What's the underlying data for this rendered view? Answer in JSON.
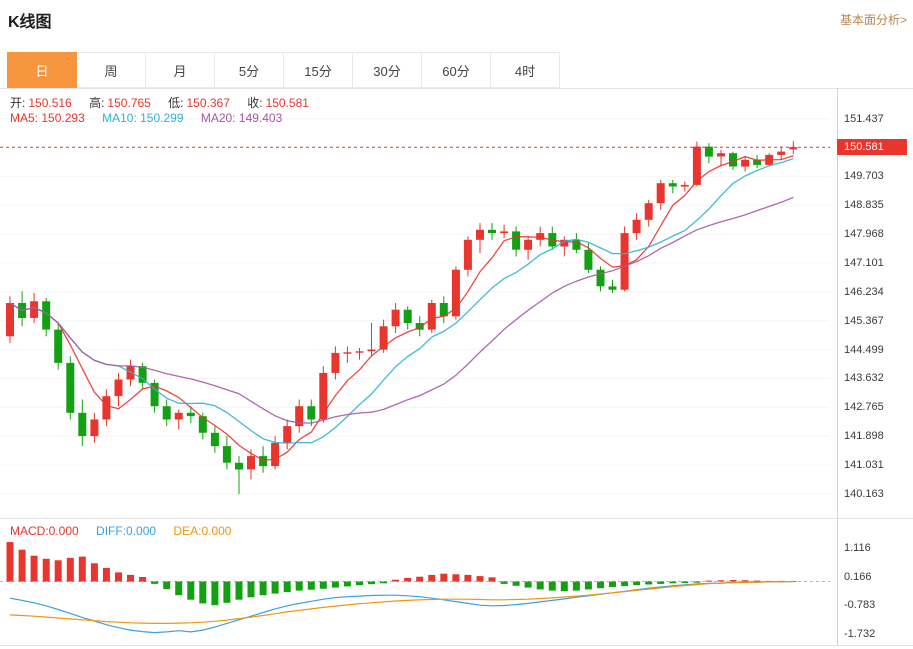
{
  "header": {
    "title": "K线图",
    "analysis_link": "基本面分析>"
  },
  "tabs": {
    "items": [
      "日",
      "周",
      "月",
      "5分",
      "15分",
      "30分",
      "60分",
      "4时"
    ],
    "active_index": 0
  },
  "ohlc": {
    "open_label": "开:",
    "open": "150.516",
    "high_label": "高:",
    "high": "150.765",
    "low_label": "低:",
    "low": "150.367",
    "close_label": "收:",
    "close": "150.581"
  },
  "ma": {
    "ma5_label": "MA5:",
    "ma5": "150.293",
    "ma10_label": "MA10:",
    "ma10": "150.299",
    "ma20_label": "MA20:",
    "ma20": "149.403"
  },
  "macd_info": {
    "macd_label": "MACD:",
    "macd": "0.000",
    "diff_label": "DIFF:",
    "diff": "0.000",
    "dea_label": "DEA:",
    "dea": "0.000"
  },
  "axis": {
    "price_ticks": [
      "151.437",
      "149.703",
      "148.835",
      "147.968",
      "147.101",
      "146.234",
      "145.367",
      "144.499",
      "143.632",
      "142.765",
      "141.898",
      "141.031",
      "140.163"
    ],
    "current_price": "150.581",
    "macd_ticks": [
      "1.116",
      "0.166",
      "-0.783",
      "-1.732"
    ]
  },
  "colors": {
    "up": "#e8352e",
    "down": "#13a113",
    "ma5": "#e8352e",
    "ma10": "#2fb3d2",
    "ma20": "#a855a8",
    "diff": "#3aa0e8",
    "dea": "#f0960f",
    "tab_active": "#f7953e",
    "link": "#bb854f",
    "grid": "#f4f4f4",
    "zero_dash": "#f0a0a0",
    "price_badge_bg": "#e8352e"
  },
  "chart_data": [
    {
      "type": "candlestick",
      "title": "K线图 日K",
      "ylim": [
        139.44,
        152.33
      ],
      "y_ticks": [
        151.437,
        149.703,
        148.835,
        147.968,
        147.101,
        146.234,
        145.367,
        144.499,
        143.632,
        142.765,
        141.898,
        141.031,
        140.163
      ],
      "current_price": 150.581,
      "ma_periods": [
        5,
        10,
        20
      ],
      "legend_position": "none",
      "grid": true,
      "candles": [
        [
          144.9,
          146.1,
          144.7,
          145.9
        ],
        [
          145.9,
          146.25,
          145.2,
          145.45
        ],
        [
          145.45,
          146.2,
          145.3,
          145.95
        ],
        [
          145.95,
          146.05,
          144.9,
          145.1
        ],
        [
          145.1,
          145.3,
          143.9,
          144.1
        ],
        [
          144.1,
          144.3,
          142.4,
          142.6
        ],
        [
          142.6,
          143.0,
          141.6,
          141.9
        ],
        [
          141.9,
          142.6,
          141.7,
          142.4
        ],
        [
          142.4,
          143.3,
          142.2,
          143.1
        ],
        [
          143.1,
          143.8,
          142.8,
          143.6
        ],
        [
          143.6,
          144.2,
          143.4,
          144.0
        ],
        [
          144.0,
          144.1,
          143.3,
          143.5
        ],
        [
          143.5,
          143.6,
          142.6,
          142.8
        ],
        [
          142.8,
          143.0,
          142.2,
          142.4
        ],
        [
          142.4,
          142.7,
          142.1,
          142.6
        ],
        [
          142.6,
          142.8,
          142.3,
          142.5
        ],
        [
          142.5,
          142.6,
          141.8,
          142.0
        ],
        [
          142.0,
          142.2,
          141.4,
          141.6
        ],
        [
          141.6,
          141.9,
          140.9,
          141.1
        ],
        [
          141.1,
          141.3,
          140.16,
          140.9
        ],
        [
          140.9,
          141.5,
          140.6,
          141.3
        ],
        [
          141.3,
          141.6,
          140.8,
          141.0
        ],
        [
          141.0,
          141.9,
          140.9,
          141.7
        ],
        [
          141.7,
          142.4,
          141.5,
          142.2
        ],
        [
          142.2,
          143.0,
          142.0,
          142.8
        ],
        [
          142.8,
          143.0,
          142.2,
          142.4
        ],
        [
          142.4,
          144.0,
          142.3,
          143.8
        ],
        [
          143.8,
          144.6,
          143.6,
          144.4
        ],
        [
          144.4,
          144.6,
          144.1,
          144.42
        ],
        [
          144.42,
          144.55,
          144.2,
          144.45
        ],
        [
          144.45,
          145.3,
          144.3,
          144.5
        ],
        [
          144.5,
          145.4,
          144.4,
          145.2
        ],
        [
          145.2,
          145.9,
          145.0,
          145.7
        ],
        [
          145.7,
          145.8,
          145.1,
          145.3
        ],
        [
          145.3,
          145.5,
          144.9,
          145.1
        ],
        [
          145.1,
          146.0,
          145.0,
          145.9
        ],
        [
          145.9,
          146.1,
          145.3,
          145.5
        ],
        [
          145.5,
          147.0,
          145.4,
          146.9
        ],
        [
          146.9,
          147.9,
          146.7,
          147.8
        ],
        [
          147.8,
          148.3,
          147.4,
          148.1
        ],
        [
          148.1,
          148.3,
          147.8,
          148.0
        ],
        [
          148.0,
          148.25,
          147.85,
          148.05
        ],
        [
          148.05,
          148.2,
          147.3,
          147.5
        ],
        [
          147.5,
          147.9,
          147.2,
          147.8
        ],
        [
          147.8,
          148.2,
          147.6,
          148.0
        ],
        [
          148.0,
          148.2,
          147.5,
          147.6
        ],
        [
          147.6,
          147.9,
          147.3,
          147.8
        ],
        [
          147.8,
          148.0,
          147.4,
          147.5
        ],
        [
          147.5,
          147.7,
          146.8,
          146.9
        ],
        [
          146.9,
          147.0,
          146.25,
          146.4
        ],
        [
          146.4,
          146.6,
          146.2,
          146.3
        ],
        [
          146.3,
          148.2,
          146.25,
          148.0
        ],
        [
          148.0,
          148.6,
          147.8,
          148.4
        ],
        [
          148.4,
          149.0,
          148.2,
          148.9
        ],
        [
          148.9,
          149.6,
          148.7,
          149.5
        ],
        [
          149.5,
          149.6,
          149.2,
          149.4
        ],
        [
          149.4,
          149.55,
          149.25,
          149.45
        ],
        [
          149.45,
          150.75,
          149.4,
          150.6
        ],
        [
          150.6,
          150.7,
          150.1,
          150.3
        ],
        [
          150.3,
          150.5,
          150.0,
          150.4
        ],
        [
          150.4,
          150.45,
          149.9,
          150.0
        ],
        [
          150.0,
          150.3,
          149.85,
          150.2
        ],
        [
          150.2,
          150.35,
          149.95,
          150.05
        ],
        [
          150.05,
          150.4,
          150.0,
          150.35
        ],
        [
          150.35,
          150.6,
          150.2,
          150.45
        ],
        [
          150.516,
          150.765,
          150.367,
          150.581
        ]
      ]
    },
    {
      "type": "macd",
      "title": "MACD(12,26,9)",
      "ylim": [
        -2.09,
        2.06
      ],
      "y_ticks": [
        1.116,
        0.166,
        -0.783,
        -1.732
      ],
      "histogram": [
        1.3,
        1.05,
        0.85,
        0.75,
        0.7,
        0.78,
        0.82,
        0.6,
        0.45,
        0.3,
        0.22,
        0.15,
        -0.08,
        -0.25,
        -0.45,
        -0.6,
        -0.72,
        -0.78,
        -0.7,
        -0.6,
        -0.52,
        -0.45,
        -0.4,
        -0.35,
        -0.3,
        -0.27,
        -0.24,
        -0.2,
        -0.16,
        -0.12,
        -0.09,
        -0.06,
        0.06,
        0.12,
        0.16,
        0.22,
        0.26,
        0.24,
        0.22,
        0.18,
        0.14,
        -0.08,
        -0.14,
        -0.2,
        -0.26,
        -0.3,
        -0.32,
        -0.3,
        -0.26,
        -0.22,
        -0.18,
        -0.15,
        -0.12,
        -0.1,
        -0.08,
        -0.06,
        -0.05,
        -0.04,
        0.03,
        0.04,
        0.05,
        0.04,
        0.03,
        0.02,
        0.02,
        0.01
      ],
      "diff": [
        -0.55,
        -0.62,
        -0.7,
        -0.8,
        -0.92,
        -1.05,
        -1.18,
        -1.3,
        -1.42,
        -1.52,
        -1.6,
        -1.65,
        -1.68,
        -1.66,
        -1.62,
        -1.66,
        -1.6,
        -1.5,
        -1.38,
        -1.26,
        -1.14,
        -1.02,
        -0.9,
        -0.8,
        -0.72,
        -0.65,
        -0.58,
        -0.53,
        -0.5,
        -0.48,
        -0.46,
        -0.45,
        -0.45,
        -0.47,
        -0.5,
        -0.55,
        -0.6,
        -0.66,
        -0.72,
        -0.78,
        -0.8,
        -0.79,
        -0.76,
        -0.72,
        -0.67,
        -0.62,
        -0.57,
        -0.52,
        -0.47,
        -0.42,
        -0.37,
        -0.32,
        -0.27,
        -0.22,
        -0.18,
        -0.14,
        -0.11,
        -0.08,
        -0.06,
        -0.05,
        -0.03,
        -0.02,
        -0.02,
        -0.01,
        -0.01,
        0.0
      ],
      "dea": [
        -1.1,
        -1.12,
        -1.14,
        -1.17,
        -1.2,
        -1.23,
        -1.26,
        -1.29,
        -1.32,
        -1.34,
        -1.36,
        -1.37,
        -1.38,
        -1.38,
        -1.37,
        -1.36,
        -1.34,
        -1.31,
        -1.27,
        -1.22,
        -1.17,
        -1.12,
        -1.06,
        -1.0,
        -0.95,
        -0.9,
        -0.85,
        -0.81,
        -0.77,
        -0.73,
        -0.7,
        -0.67,
        -0.64,
        -0.62,
        -0.6,
        -0.59,
        -0.58,
        -0.58,
        -0.58,
        -0.59,
        -0.6,
        -0.6,
        -0.59,
        -0.58,
        -0.56,
        -0.54,
        -0.51,
        -0.48,
        -0.45,
        -0.41,
        -0.37,
        -0.33,
        -0.29,
        -0.25,
        -0.21,
        -0.17,
        -0.13,
        -0.1,
        -0.07,
        -0.05,
        -0.04,
        -0.03,
        -0.02,
        -0.01,
        -0.01,
        0.0
      ]
    }
  ]
}
